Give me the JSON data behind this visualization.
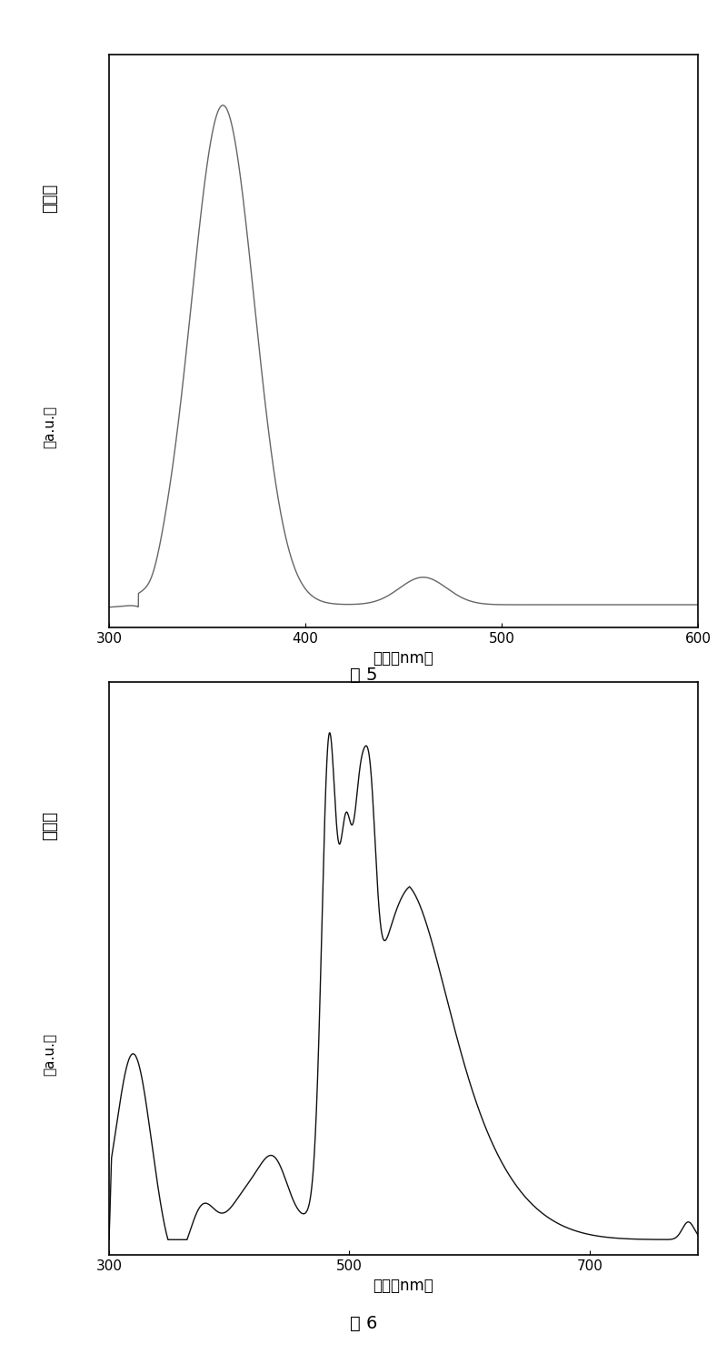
{
  "fig5": {
    "xlabel": "波长（nm）",
    "ylabel_chars": [
      "光",
      "电",
      "流",
      "（a.u.）"
    ],
    "ylabel_line1": "光电流",
    "ylabel_line2": "（a.u.）",
    "caption": "图 5",
    "xlim": [
      300,
      600
    ],
    "xticks": [
      300,
      400,
      500,
      600
    ],
    "line_color": "#666666"
  },
  "fig6": {
    "xlabel": "波长（nm）",
    "ylabel_line1": "光电流",
    "ylabel_line2": "（a.u.）",
    "caption": "图 6",
    "xlim": [
      300,
      790
    ],
    "xticks": [
      300,
      500,
      700
    ],
    "line_color": "#111111"
  }
}
